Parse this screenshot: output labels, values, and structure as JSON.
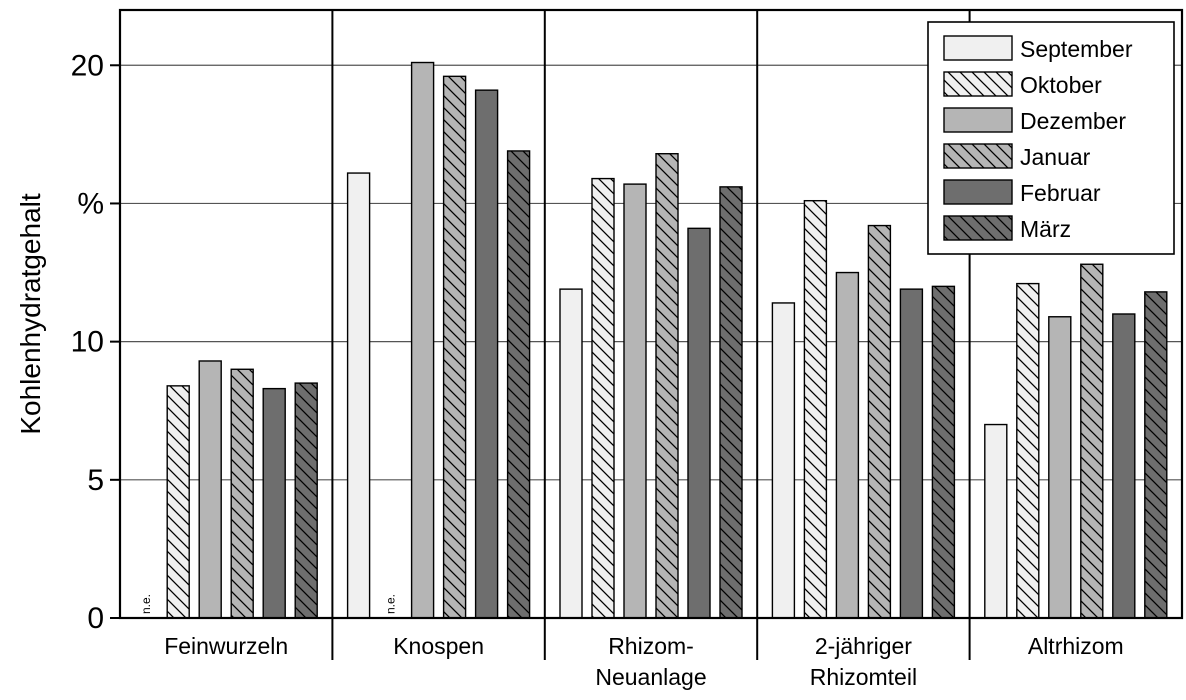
{
  "chart_data": {
    "type": "bar",
    "ylabel": "Kohlenhydratgehalt",
    "y_unit_tick": "%",
    "ylim": [
      0,
      22
    ],
    "yticks": [
      0,
      5,
      10,
      20
    ],
    "grid": true,
    "legend_position": "top-right",
    "categories": [
      "Feinwurzeln",
      "Knospen",
      "Rhizom-\nNeuanlage",
      "2-jähriger\nRhizomteil",
      "Altrhizom"
    ],
    "series": [
      {
        "name": "September",
        "values": [
          null,
          16.1,
          11.9,
          11.4,
          7.0
        ]
      },
      {
        "name": "Oktober",
        "values": [
          8.4,
          null,
          15.9,
          15.1,
          12.1
        ]
      },
      {
        "name": "Dezember",
        "values": [
          9.3,
          20.1,
          15.7,
          12.5,
          10.9
        ]
      },
      {
        "name": "Januar",
        "values": [
          9.0,
          19.6,
          16.8,
          14.2,
          12.8
        ]
      },
      {
        "name": "Februar",
        "values": [
          8.3,
          19.1,
          14.1,
          11.9,
          11.0
        ]
      },
      {
        "name": "März",
        "values": [
          8.5,
          16.9,
          15.6,
          12.0,
          11.8
        ]
      }
    ],
    "missing_label": "n.e."
  }
}
